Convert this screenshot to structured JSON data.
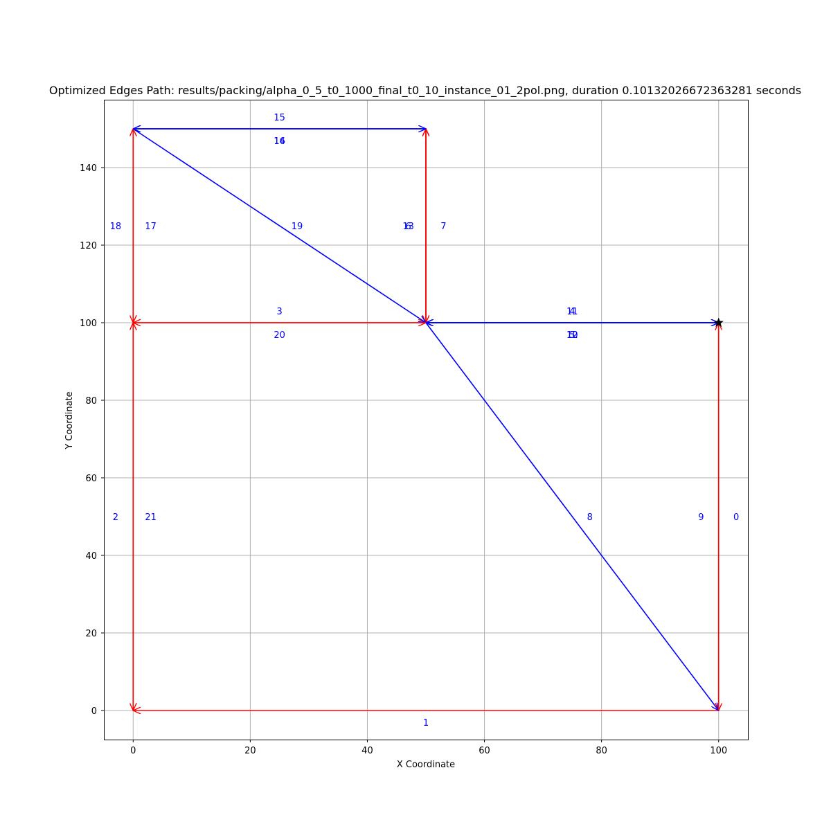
{
  "chart_data": {
    "type": "line",
    "title": "Optimized Edges Path: results/packing/alpha_0_5_t0_1000_final_t0_10_instance_01_2pol.png, duration 0.10132026672363281 seconds",
    "xlabel": "X Coordinate",
    "ylabel": "Y Coordinate",
    "xlim": [
      -5,
      105
    ],
    "ylim": [
      -7.5,
      157.5
    ],
    "xticks": [
      0,
      20,
      40,
      60,
      80,
      100
    ],
    "yticks": [
      0,
      20,
      40,
      60,
      80,
      100,
      120,
      140
    ],
    "grid": true,
    "colors": {
      "red": "#ff0000",
      "blue": "#0000ff",
      "grid": "#b0b0b0",
      "marker": "#000000"
    },
    "start_marker": {
      "x": 100,
      "y": 100,
      "shape": "star"
    },
    "edges": [
      {
        "label": "0",
        "color": "red",
        "from": [
          100,
          100
        ],
        "to": [
          100,
          0
        ],
        "label_at": [
          103,
          50
        ]
      },
      {
        "label": "1",
        "color": "red",
        "from": [
          100,
          0
        ],
        "to": [
          0,
          0
        ],
        "label_at": [
          50,
          -3
        ]
      },
      {
        "label": "2",
        "color": "red",
        "from": [
          0,
          0
        ],
        "to": [
          0,
          100
        ],
        "label_at": [
          -3,
          50
        ]
      },
      {
        "label": "3",
        "color": "red",
        "from": [
          0,
          100
        ],
        "to": [
          50,
          100
        ],
        "label_at": [
          25,
          103
        ]
      },
      {
        "label": "4",
        "color": "blue",
        "from": [
          50,
          100
        ],
        "to": [
          100,
          100
        ],
        "label_at": [
          75,
          103
        ]
      },
      {
        "label": "5",
        "color": "blue",
        "from": [
          100,
          100
        ],
        "to": [
          50,
          100
        ],
        "label_at": [
          75,
          97
        ]
      },
      {
        "label": "6",
        "color": "red",
        "from": [
          50,
          100
        ],
        "to": [
          50,
          150
        ],
        "label_at": [
          47,
          125
        ]
      },
      {
        "label": "7",
        "color": "red",
        "from": [
          50,
          150
        ],
        "to": [
          50,
          100
        ],
        "label_at": [
          53,
          125
        ]
      },
      {
        "label": "8",
        "color": "blue",
        "from": [
          50,
          100
        ],
        "to": [
          100,
          0
        ],
        "label_at": [
          78,
          50
        ]
      },
      {
        "label": "9",
        "color": "red",
        "from": [
          100,
          0
        ],
        "to": [
          100,
          100
        ],
        "label_at": [
          97,
          50
        ]
      },
      {
        "label": "10",
        "color": "blue",
        "from": [
          100,
          100
        ],
        "to": [
          50,
          100
        ],
        "label_at": [
          75,
          97
        ]
      },
      {
        "label": "11",
        "color": "blue",
        "from": [
          50,
          100
        ],
        "to": [
          100,
          100
        ],
        "label_at": [
          75,
          103
        ]
      },
      {
        "label": "12",
        "color": "blue",
        "from": [
          100,
          100
        ],
        "to": [
          50,
          100
        ],
        "label_at": [
          75,
          97
        ]
      },
      {
        "label": "13",
        "color": "red",
        "from": [
          50,
          100
        ],
        "to": [
          50,
          150
        ],
        "label_at": [
          47,
          125
        ]
      },
      {
        "label": "14",
        "color": "blue",
        "from": [
          50,
          150
        ],
        "to": [
          0,
          150
        ],
        "label_at": [
          25,
          147
        ]
      },
      {
        "label": "15",
        "color": "blue",
        "from": [
          0,
          150
        ],
        "to": [
          50,
          150
        ],
        "label_at": [
          25,
          153
        ]
      },
      {
        "label": "16",
        "color": "blue",
        "from": [
          50,
          150
        ],
        "to": [
          0,
          150
        ],
        "label_at": [
          25,
          147
        ]
      },
      {
        "label": "17",
        "color": "red",
        "from": [
          0,
          150
        ],
        "to": [
          0,
          100
        ],
        "label_at": [
          3,
          125
        ]
      },
      {
        "label": "18",
        "color": "red",
        "from": [
          0,
          100
        ],
        "to": [
          0,
          150
        ],
        "label_at": [
          -3,
          125
        ]
      },
      {
        "label": "19",
        "color": "blue",
        "from": [
          0,
          150
        ],
        "to": [
          50,
          100
        ],
        "label_at": [
          28,
          125
        ]
      },
      {
        "label": "20",
        "color": "red",
        "from": [
          50,
          100
        ],
        "to": [
          0,
          100
        ],
        "label_at": [
          25,
          97
        ]
      },
      {
        "label": "21",
        "color": "red",
        "from": [
          0,
          100
        ],
        "to": [
          0,
          0
        ],
        "label_at": [
          3,
          50
        ]
      }
    ]
  }
}
